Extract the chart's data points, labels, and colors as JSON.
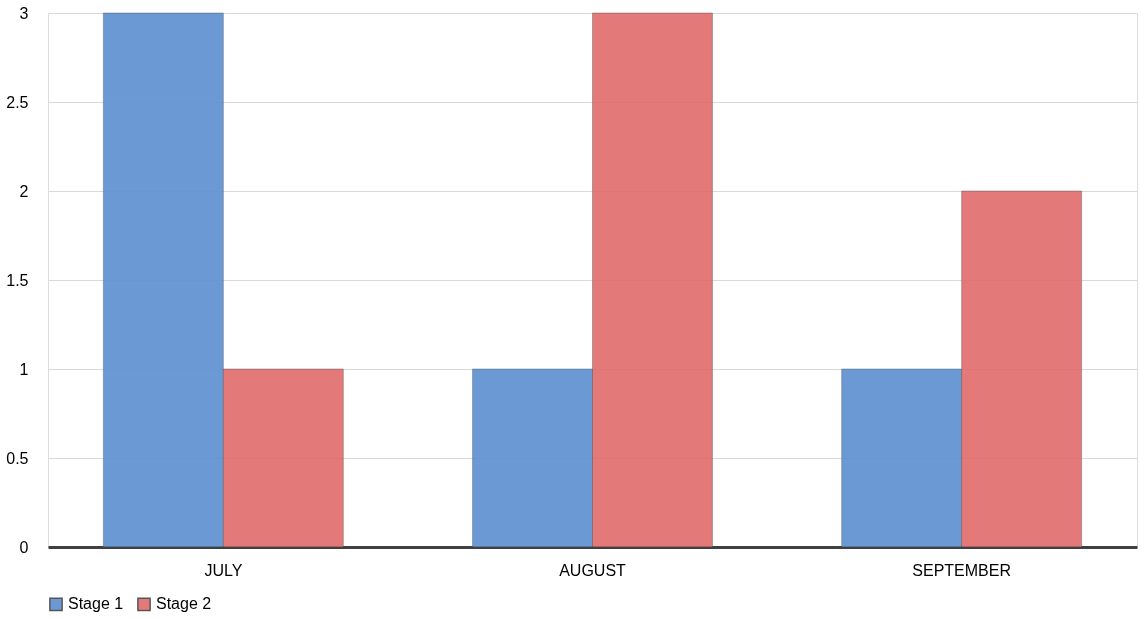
{
  "chart_data": {
    "type": "bar",
    "categories": [
      "JULY",
      "AUGUST",
      "SEPTEMBER"
    ],
    "series": [
      {
        "name": "Stage 1",
        "color": "#5b8fd0",
        "values": [
          3,
          1,
          1
        ]
      },
      {
        "name": "Stage 2",
        "color": "#e06b6b",
        "values": [
          1,
          3,
          2
        ]
      }
    ],
    "ylim": [
      0,
      3
    ],
    "yticks": [
      0,
      0.5,
      1,
      1.5,
      2,
      2.5,
      3
    ],
    "grid": "y",
    "legend": "bottom"
  }
}
